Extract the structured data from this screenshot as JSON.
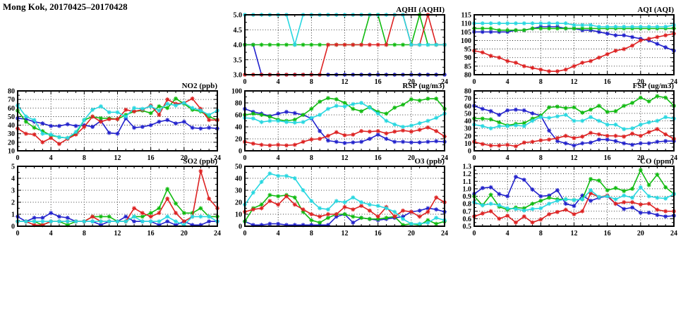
{
  "page_title": "Mong Kok, 20170425–20170428",
  "series_colors": {
    "blue": "#2222cc",
    "green": "#11bb11",
    "red": "#dd2222",
    "cyan": "#28d7e0"
  },
  "x_axis": {
    "min": 0,
    "max": 24,
    "major_tick_labels": [
      0,
      4,
      8,
      12,
      16,
      20,
      24
    ],
    "minor_step": 1,
    "grid_at": [
      4,
      8,
      12,
      16,
      20
    ]
  },
  "chart_data": [
    {
      "id": "aqhi",
      "title": "AQHI (AQHI)",
      "type": "line",
      "col": 1,
      "row": 0,
      "ylim": [
        3.0,
        5.0
      ],
      "ytick_step": 0.5,
      "ydecimals": 1,
      "series": [
        {
          "color": "blue",
          "values": [
            4,
            4,
            3,
            3,
            3,
            3,
            3,
            3,
            3,
            3,
            3,
            3,
            3,
            3,
            3,
            3,
            3,
            3,
            3,
            3,
            3,
            3,
            3,
            3,
            3
          ]
        },
        {
          "color": "green",
          "values": [
            4,
            4,
            4,
            4,
            4,
            4,
            4,
            4,
            4,
            4,
            4,
            4,
            4,
            4,
            4,
            5,
            5,
            4,
            4,
            4,
            4,
            5,
            4,
            4,
            4
          ]
        },
        {
          "color": "red",
          "values": [
            3,
            3,
            3,
            3,
            3,
            3,
            3,
            3,
            3,
            3,
            4,
            4,
            4,
            4,
            4,
            4,
            4,
            4,
            5,
            5,
            4,
            4,
            5,
            4,
            4
          ]
        },
        {
          "color": "cyan",
          "values": [
            5,
            5,
            5,
            5,
            5,
            5,
            4,
            5,
            5,
            5,
            5,
            5,
            5,
            5,
            5,
            5,
            5,
            5,
            5,
            5,
            4,
            4,
            4,
            4,
            4
          ]
        }
      ]
    },
    {
      "id": "aqi",
      "title": "AQI (AQI)",
      "type": "line",
      "col": 2,
      "row": 0,
      "ylim": [
        80,
        115
      ],
      "ytick_step": 5,
      "ydecimals": 0,
      "series": [
        {
          "color": "blue",
          "values": [
            105,
            105,
            105,
            105,
            105,
            106,
            106,
            107,
            108,
            108,
            108,
            107,
            107,
            106,
            106,
            105,
            104,
            103,
            103,
            102,
            101,
            100,
            98,
            96,
            94
          ]
        },
        {
          "color": "green",
          "values": [
            107,
            107,
            107,
            106,
            106,
            106,
            106,
            107,
            107,
            107,
            107,
            107,
            107,
            107,
            107,
            107,
            107,
            107,
            107,
            107,
            107,
            107,
            107,
            107,
            107
          ]
        },
        {
          "color": "red",
          "values": [
            94,
            93,
            91,
            90,
            88,
            87,
            85,
            84,
            83,
            82,
            82,
            83,
            85,
            87,
            88,
            90,
            92,
            94,
            95,
            97,
            100,
            101,
            102,
            103,
            104
          ]
        },
        {
          "color": "cyan",
          "values": [
            110,
            110,
            110,
            110,
            110,
            110,
            110,
            110,
            110,
            110,
            110,
            110,
            109,
            109,
            109,
            108,
            108,
            108,
            108,
            108,
            108,
            108,
            108,
            108,
            109
          ]
        }
      ]
    },
    {
      "id": "no2",
      "title": "NO2 (ppb)",
      "type": "line",
      "col": 0,
      "row": 1,
      "ylim": [
        10,
        80
      ],
      "ytick_step": 10,
      "ydecimals": 0,
      "series": [
        {
          "color": "blue",
          "values": [
            48,
            47,
            44,
            42,
            39,
            39,
            41,
            39,
            40,
            38,
            45,
            31,
            30,
            48,
            37,
            38,
            40,
            44,
            46,
            42,
            44,
            37,
            36,
            37,
            36
          ]
        },
        {
          "color": "green",
          "values": [
            57,
            44,
            37,
            33,
            28,
            26,
            25,
            30,
            46,
            50,
            48,
            48,
            47,
            52,
            56,
            57,
            54,
            62,
            60,
            71,
            65,
            58,
            56,
            50,
            46
          ]
        },
        {
          "color": "red",
          "values": [
            36,
            30,
            29,
            20,
            25,
            18,
            24,
            29,
            38,
            50,
            44,
            47,
            47,
            58,
            56,
            58,
            63,
            52,
            70,
            65,
            66,
            71,
            59,
            46,
            46
          ]
        },
        {
          "color": "cyan",
          "values": [
            63,
            50,
            46,
            30,
            29,
            26,
            25,
            32,
            46,
            58,
            62,
            55,
            55,
            50,
            60,
            59,
            62,
            57,
            65,
            63,
            66,
            60,
            57,
            52,
            57
          ]
        }
      ]
    },
    {
      "id": "rsp",
      "title": "RSP (ug/m3)",
      "type": "line",
      "col": 1,
      "row": 1,
      "ylim": [
        0,
        100
      ],
      "ytick_step": 20,
      "ydecimals": 0,
      "series": [
        {
          "color": "blue",
          "values": [
            70,
            65,
            62,
            58,
            62,
            65,
            63,
            60,
            54,
            33,
            17,
            15,
            13,
            14,
            15,
            20,
            27,
            20,
            15,
            15,
            14,
            14,
            15,
            16,
            15
          ]
        },
        {
          "color": "green",
          "values": [
            60,
            62,
            60,
            57,
            52,
            50,
            52,
            60,
            70,
            82,
            88,
            86,
            80,
            70,
            66,
            73,
            65,
            62,
            72,
            77,
            86,
            84,
            87,
            87,
            70
          ]
        },
        {
          "color": "red",
          "values": [
            15,
            12,
            10,
            9,
            10,
            9,
            10,
            15,
            19,
            20,
            25,
            31,
            26,
            27,
            33,
            32,
            33,
            29,
            32,
            34,
            32,
            35,
            39,
            33,
            24
          ]
        },
        {
          "color": "cyan",
          "values": [
            55,
            54,
            48,
            50,
            50,
            48,
            47,
            48,
            55,
            60,
            70,
            75,
            74,
            78,
            80,
            72,
            62,
            50,
            44,
            40,
            42,
            46,
            50,
            55,
            62
          ]
        }
      ]
    },
    {
      "id": "fsp",
      "title": "FSP (ug/m3)",
      "type": "line",
      "col": 2,
      "row": 1,
      "ylim": [
        0,
        80
      ],
      "ytick_step": 10,
      "ydecimals": 0,
      "series": [
        {
          "color": "blue",
          "values": [
            60,
            56,
            53,
            48,
            54,
            55,
            54,
            50,
            47,
            27,
            13,
            10,
            7,
            10,
            11,
            15,
            15,
            13,
            10,
            8,
            10,
            10,
            12,
            13,
            13
          ]
        },
        {
          "color": "green",
          "values": [
            43,
            43,
            42,
            38,
            34,
            36,
            37,
            43,
            47,
            58,
            59,
            57,
            58,
            51,
            55,
            60,
            52,
            53,
            60,
            64,
            71,
            66,
            73,
            71,
            60
          ]
        },
        {
          "color": "red",
          "values": [
            12,
            9,
            7,
            7,
            8,
            6,
            11,
            12,
            14,
            15,
            17,
            20,
            17,
            19,
            24,
            22,
            20,
            20,
            19,
            23,
            20,
            25,
            29,
            22,
            16
          ]
        },
        {
          "color": "cyan",
          "values": [
            35,
            33,
            30,
            33,
            33,
            34,
            33,
            40,
            45,
            44,
            46,
            48,
            40,
            40,
            45,
            40,
            35,
            35,
            29,
            30,
            35,
            38,
            40,
            45,
            43
          ]
        }
      ]
    },
    {
      "id": "so2",
      "title": "SO2 (ppb)",
      "type": "line",
      "col": 0,
      "row": 2,
      "ylim": [
        0,
        5
      ],
      "ytick_step": 1,
      "ydecimals": 0,
      "series": [
        {
          "color": "blue",
          "values": [
            0.8,
            0.4,
            0.7,
            0.7,
            1.1,
            0.8,
            0.7,
            0.4,
            0.4,
            0.4,
            0.1,
            0.4,
            0.4,
            0.8,
            0.4,
            0.4,
            0.4,
            0.1,
            0.4,
            0.1,
            0.4,
            0.1,
            0.1,
            0.4,
            0.4
          ]
        },
        {
          "color": "green",
          "values": [
            0.4,
            0.4,
            0.4,
            0.1,
            0.4,
            0.4,
            0.1,
            0.4,
            0.4,
            0.8,
            0.8,
            0.8,
            0.4,
            0.4,
            0.8,
            0.8,
            1.1,
            1.5,
            3.1,
            1.9,
            1.1,
            1.1,
            1.5,
            0.8,
            0.8
          ]
        },
        {
          "color": "red",
          "values": [
            0.4,
            0.4,
            0.1,
            0.1,
            0.4,
            0.4,
            0.4,
            0.4,
            0.4,
            0.8,
            0.4,
            0.4,
            0.4,
            0.4,
            1.5,
            1.1,
            0.8,
            1.1,
            2.3,
            1.1,
            0.4,
            0.8,
            4.6,
            2.3,
            1.5
          ]
        },
        {
          "color": "cyan",
          "values": [
            0.4,
            0.4,
            0.4,
            0.4,
            0.4,
            0.4,
            0.4,
            0.4,
            0.4,
            0.4,
            0.4,
            0.4,
            0.4,
            0.4,
            0.8,
            0.4,
            0.4,
            0.4,
            0.8,
            0.4,
            0.1,
            0.8,
            0.8,
            0.8,
            0.4
          ]
        }
      ]
    },
    {
      "id": "o3",
      "title": "O3 (ppb)",
      "type": "line",
      "col": 1,
      "row": 2,
      "ylim": [
        0,
        50
      ],
      "ytick_step": 10,
      "ydecimals": 0,
      "series": [
        {
          "color": "blue",
          "values": [
            4,
            1,
            1,
            2,
            2,
            1,
            1,
            1,
            1,
            1,
            1,
            8,
            10,
            3,
            7,
            6,
            5,
            6,
            7,
            8,
            12,
            13,
            15,
            14,
            12
          ]
        },
        {
          "color": "green",
          "values": [
            4,
            15,
            18,
            26,
            25,
            26,
            24,
            12,
            5,
            3,
            7,
            10,
            10,
            8,
            7,
            6,
            6,
            7,
            8,
            1,
            2,
            1,
            5,
            2,
            4
          ]
        },
        {
          "color": "red",
          "values": [
            12,
            14,
            15,
            21,
            18,
            25,
            18,
            14,
            10,
            8,
            10,
            10,
            16,
            14,
            17,
            13,
            8,
            16,
            8,
            13,
            12,
            8,
            12,
            24,
            20
          ]
        },
        {
          "color": "cyan",
          "values": [
            18,
            28,
            37,
            44,
            42,
            42,
            40,
            30,
            21,
            15,
            14,
            21,
            20,
            24,
            20,
            18,
            17,
            15,
            12,
            6,
            2,
            2,
            3,
            7,
            5
          ]
        }
      ]
    },
    {
      "id": "co",
      "title": "CO (ppm)",
      "type": "line",
      "col": 2,
      "row": 2,
      "ylim": [
        0.5,
        1.3
      ],
      "ytick_step": 0.1,
      "ydecimals": 1,
      "series": [
        {
          "color": "blue",
          "values": [
            0.93,
            1.01,
            1.02,
            0.93,
            0.9,
            1.16,
            1.12,
            0.99,
            0.9,
            0.91,
            0.98,
            0.8,
            0.77,
            0.91,
            0.84,
            0.88,
            0.9,
            0.8,
            0.73,
            0.75,
            0.68,
            0.68,
            0.65,
            0.63,
            0.64
          ]
        },
        {
          "color": "green",
          "values": [
            0.9,
            0.78,
            0.92,
            0.76,
            0.72,
            0.75,
            0.74,
            0.8,
            0.84,
            0.88,
            0.86,
            0.86,
            0.85,
            0.86,
            1.13,
            1.11,
            0.98,
            1.01,
            0.97,
            1.0,
            1.25,
            1.05,
            1.19,
            1.02,
            0.93
          ]
        },
        {
          "color": "red",
          "values": [
            0.63,
            0.67,
            0.7,
            0.6,
            0.64,
            0.55,
            0.63,
            0.55,
            0.59,
            0.66,
            0.69,
            0.72,
            0.66,
            0.7,
            0.94,
            0.89,
            0.91,
            0.8,
            0.82,
            0.82,
            0.79,
            0.8,
            0.72,
            0.7,
            0.7
          ]
        },
        {
          "color": "cyan",
          "values": [
            0.82,
            0.78,
            0.8,
            0.78,
            0.74,
            0.73,
            0.71,
            0.73,
            0.74,
            0.8,
            0.84,
            0.86,
            0.85,
            0.86,
            0.98,
            0.89,
            0.9,
            0.86,
            0.91,
            0.88,
            1.02,
            0.9,
            0.88,
            0.87,
            0.93
          ]
        }
      ]
    }
  ]
}
